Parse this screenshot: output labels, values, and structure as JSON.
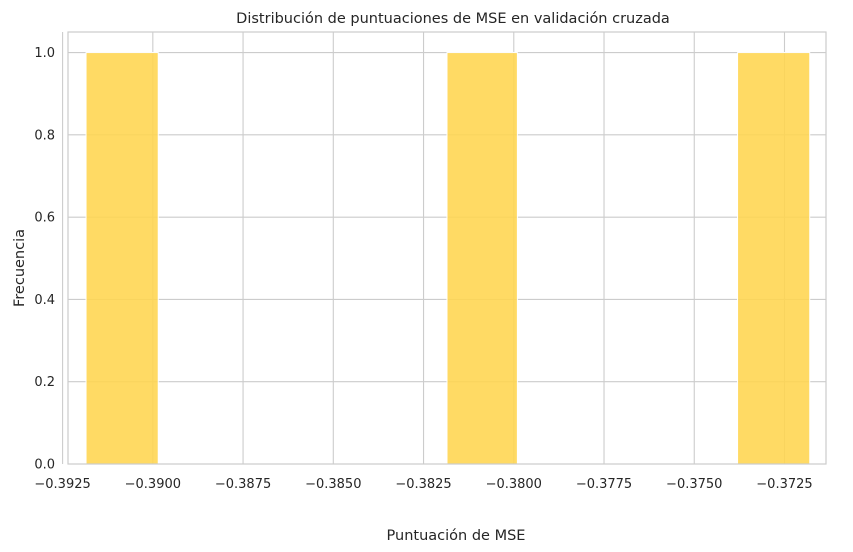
{
  "chart_data": {
    "type": "bar",
    "title": "Distribución de puntuaciones de MSE en validación cruzada",
    "xlabel": "Puntuación de MSE",
    "ylabel": "Frecuencia",
    "bins": [
      {
        "x0": -0.39185,
        "x1": -0.38985,
        "count": 1
      },
      {
        "x0": -0.38185,
        "x1": -0.3799,
        "count": 1
      },
      {
        "x0": -0.3738,
        "x1": -0.3718,
        "count": 1
      }
    ],
    "xlim": [
      -0.39235,
      -0.37135
    ],
    "ylim": [
      0,
      1.05
    ],
    "x_ticks": [
      -0.3925,
      -0.39,
      -0.3875,
      -0.385,
      -0.3825,
      -0.38,
      -0.3775,
      -0.375,
      -0.3725
    ],
    "x_tick_labels": [
      "−0.3925",
      "−0.3900",
      "−0.3875",
      "−0.3850",
      "−0.3825",
      "−0.3800",
      "−0.3775",
      "−0.3750",
      "−0.3725"
    ],
    "y_ticks": [
      0,
      0.2,
      0.4,
      0.6,
      0.8,
      1.0
    ],
    "y_tick_labels": [
      "0.0",
      "0.2",
      "0.4",
      "0.6",
      "0.8",
      "1.0"
    ],
    "bar_color": "#ffd54f",
    "grid": true
  }
}
